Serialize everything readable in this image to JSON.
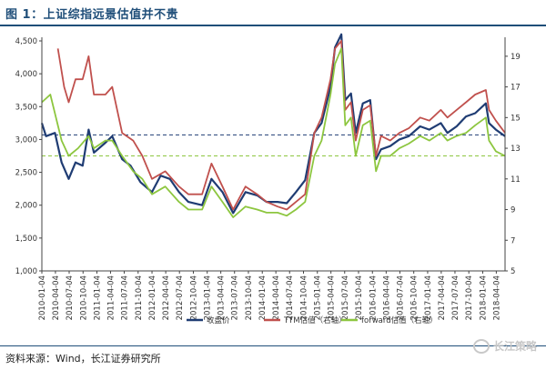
{
  "figure": {
    "title": "图 1：上证综指远景估值并不贵",
    "source": "资料来源：Wind，长江证券研究所",
    "watermark": "长江策略",
    "watermark_icon": "wechat-icon"
  },
  "chart_data": {
    "type": "line",
    "title": "",
    "xlabel": "",
    "ylabel": "",
    "x_start": "2010-01-04",
    "x_end": "2018-06-01",
    "x_ticks": [
      "2010-01-04",
      "2010-04-04",
      "2010-07-04",
      "2010-10-04",
      "2011-01-04",
      "2011-04-04",
      "2011-07-04",
      "2011-10-04",
      "2012-01-04",
      "2012-04-04",
      "2012-07-04",
      "2012-10-04",
      "2013-01-04",
      "2013-04-04",
      "2013-07-04",
      "2013-10-04",
      "2014-01-04",
      "2014-04-04",
      "2014-07-04",
      "2014-10-04",
      "2015-01-04",
      "2015-04-04",
      "2015-07-04",
      "2015-10-04",
      "2016-01-04",
      "2016-04-04",
      "2016-07-04",
      "2016-10-04",
      "2017-01-04",
      "2017-04-04",
      "2017-07-04",
      "2017-10-04",
      "2018-01-04",
      "2018-04-04"
    ],
    "y_left": {
      "ticks": [
        "1,000",
        "1,500",
        "2,000",
        "2,500",
        "3,000",
        "3,500",
        "4,000",
        "4,500"
      ],
      "range": [
        1000,
        4500
      ]
    },
    "y_right": {
      "ticks": [
        "5",
        "7",
        "9",
        "11",
        "13",
        "15",
        "17",
        "19"
      ],
      "range": [
        5,
        20
      ]
    },
    "reference_lines": [
      {
        "axis": "left",
        "value": 3070,
        "color": "#1f3c73",
        "style": "dashed"
      },
      {
        "axis": "right",
        "value": 12.5,
        "color": "#8dc63f",
        "style": "dashed"
      }
    ],
    "legend": {
      "placement": "bottom"
    },
    "series": [
      {
        "name": "收盘价",
        "axis": "left",
        "color": "#1f3c73",
        "points": [
          [
            "2010-01-04",
            3250
          ],
          [
            "2010-02-01",
            3050
          ],
          [
            "2010-04-01",
            3100
          ],
          [
            "2010-05-15",
            2650
          ],
          [
            "2010-07-01",
            2400
          ],
          [
            "2010-08-15",
            2650
          ],
          [
            "2010-10-01",
            2600
          ],
          [
            "2010-11-10",
            3150
          ],
          [
            "2010-12-15",
            2800
          ],
          [
            "2011-03-01",
            2950
          ],
          [
            "2011-04-15",
            3050
          ],
          [
            "2011-06-20",
            2700
          ],
          [
            "2011-08-15",
            2600
          ],
          [
            "2011-10-20",
            2350
          ],
          [
            "2012-01-04",
            2200
          ],
          [
            "2012-03-01",
            2450
          ],
          [
            "2012-05-01",
            2400
          ],
          [
            "2012-07-01",
            2200
          ],
          [
            "2012-09-01",
            2050
          ],
          [
            "2012-12-01",
            2000
          ],
          [
            "2013-02-01",
            2400
          ],
          [
            "2013-04-15",
            2200
          ],
          [
            "2013-06-25",
            1880
          ],
          [
            "2013-09-15",
            2200
          ],
          [
            "2013-12-01",
            2150
          ],
          [
            "2014-02-01",
            2050
          ],
          [
            "2014-04-15",
            2050
          ],
          [
            "2014-06-15",
            2030
          ],
          [
            "2014-08-15",
            2200
          ],
          [
            "2014-10-15",
            2380
          ],
          [
            "2014-12-15",
            3100
          ],
          [
            "2015-02-01",
            3250
          ],
          [
            "2015-04-01",
            3800
          ],
          [
            "2015-05-01",
            4400
          ],
          [
            "2015-06-12",
            4600
          ],
          [
            "2015-07-08",
            3600
          ],
          [
            "2015-08-15",
            3700
          ],
          [
            "2015-09-15",
            3100
          ],
          [
            "2015-11-01",
            3550
          ],
          [
            "2015-12-20",
            3600
          ],
          [
            "2016-01-28",
            2700
          ],
          [
            "2016-03-01",
            2850
          ],
          [
            "2016-05-01",
            2900
          ],
          [
            "2016-07-01",
            3000
          ],
          [
            "2016-09-01",
            3050
          ],
          [
            "2016-11-15",
            3200
          ],
          [
            "2017-01-15",
            3150
          ],
          [
            "2017-04-01",
            3250
          ],
          [
            "2017-05-15",
            3100
          ],
          [
            "2017-07-15",
            3200
          ],
          [
            "2017-09-15",
            3350
          ],
          [
            "2017-11-15",
            3400
          ],
          [
            "2018-01-25",
            3550
          ],
          [
            "2018-02-15",
            3250
          ],
          [
            "2018-04-01",
            3150
          ],
          [
            "2018-06-01",
            3050
          ]
        ]
      },
      {
        "name": "TTM估值（右轴）",
        "axis": "right",
        "color": "#c0504d",
        "points": [
          [
            "2010-04-20",
            19.5
          ],
          [
            "2010-06-01",
            17.0
          ],
          [
            "2010-07-01",
            16.0
          ],
          [
            "2010-08-15",
            17.5
          ],
          [
            "2010-10-01",
            17.5
          ],
          [
            "2010-11-10",
            19.0
          ],
          [
            "2010-12-15",
            16.5
          ],
          [
            "2011-03-01",
            16.5
          ],
          [
            "2011-04-15",
            17.0
          ],
          [
            "2011-06-20",
            14.0
          ],
          [
            "2011-09-01",
            13.5
          ],
          [
            "2011-11-01",
            12.5
          ],
          [
            "2012-01-04",
            11.0
          ],
          [
            "2012-04-01",
            11.5
          ],
          [
            "2012-07-01",
            10.5
          ],
          [
            "2012-09-01",
            10.0
          ],
          [
            "2012-12-01",
            10.0
          ],
          [
            "2013-02-01",
            12.0
          ],
          [
            "2013-04-15",
            10.5
          ],
          [
            "2013-06-25",
            9.0
          ],
          [
            "2013-09-15",
            10.5
          ],
          [
            "2013-12-01",
            10.0
          ],
          [
            "2014-02-01",
            9.5
          ],
          [
            "2014-04-15",
            9.2
          ],
          [
            "2014-06-15",
            9.0
          ],
          [
            "2014-08-15",
            9.5
          ],
          [
            "2014-10-15",
            10.0
          ],
          [
            "2014-12-15",
            14.0
          ],
          [
            "2015-02-01",
            15.0
          ],
          [
            "2015-04-01",
            17.5
          ],
          [
            "2015-05-01",
            19.5
          ],
          [
            "2015-06-12",
            20.0
          ],
          [
            "2015-07-08",
            15.5
          ],
          [
            "2015-08-15",
            16.0
          ],
          [
            "2015-09-15",
            13.5
          ],
          [
            "2015-11-01",
            15.5
          ],
          [
            "2015-12-20",
            15.8
          ],
          [
            "2016-01-28",
            12.5
          ],
          [
            "2016-03-01",
            13.8
          ],
          [
            "2016-05-01",
            13.5
          ],
          [
            "2016-07-01",
            14.0
          ],
          [
            "2016-09-01",
            14.3
          ],
          [
            "2016-11-15",
            15.0
          ],
          [
            "2017-01-15",
            14.8
          ],
          [
            "2017-04-01",
            15.5
          ],
          [
            "2017-05-15",
            15.0
          ],
          [
            "2017-07-15",
            15.5
          ],
          [
            "2017-09-15",
            16.0
          ],
          [
            "2017-11-15",
            16.5
          ],
          [
            "2018-01-25",
            16.8
          ],
          [
            "2018-02-15",
            15.5
          ],
          [
            "2018-04-01",
            14.8
          ],
          [
            "2018-06-01",
            14.0
          ]
        ]
      },
      {
        "name": "forward估值（右轴）",
        "axis": "right",
        "color": "#8dc63f",
        "points": [
          [
            "2010-01-04",
            16.0
          ],
          [
            "2010-03-01",
            16.5
          ],
          [
            "2010-05-15",
            13.5
          ],
          [
            "2010-07-01",
            12.5
          ],
          [
            "2010-09-01",
            13.0
          ],
          [
            "2010-11-10",
            13.8
          ],
          [
            "2010-12-15",
            13.0
          ],
          [
            "2011-03-01",
            13.5
          ],
          [
            "2011-04-15",
            13.5
          ],
          [
            "2011-06-20",
            12.5
          ],
          [
            "2011-09-01",
            11.5
          ],
          [
            "2011-11-01",
            11.0
          ],
          [
            "2012-01-04",
            10.0
          ],
          [
            "2012-04-01",
            10.5
          ],
          [
            "2012-07-01",
            9.5
          ],
          [
            "2012-09-01",
            9.0
          ],
          [
            "2012-12-01",
            9.0
          ],
          [
            "2013-02-01",
            10.5
          ],
          [
            "2013-04-15",
            9.5
          ],
          [
            "2013-06-25",
            8.5
          ],
          [
            "2013-09-15",
            9.2
          ],
          [
            "2013-12-01",
            9.0
          ],
          [
            "2014-02-01",
            8.8
          ],
          [
            "2014-04-15",
            8.8
          ],
          [
            "2014-06-15",
            8.6
          ],
          [
            "2014-08-15",
            9.0
          ],
          [
            "2014-10-15",
            9.5
          ],
          [
            "2014-12-15",
            12.5
          ],
          [
            "2015-02-01",
            13.5
          ],
          [
            "2015-04-01",
            16.5
          ],
          [
            "2015-05-01",
            18.5
          ],
          [
            "2015-06-12",
            19.5
          ],
          [
            "2015-07-08",
            14.5
          ],
          [
            "2015-08-15",
            15.0
          ],
          [
            "2015-09-15",
            12.5
          ],
          [
            "2015-11-01",
            14.5
          ],
          [
            "2015-12-20",
            14.8
          ],
          [
            "2016-01-28",
            11.5
          ],
          [
            "2016-03-01",
            12.5
          ],
          [
            "2016-05-01",
            12.5
          ],
          [
            "2016-07-01",
            13.0
          ],
          [
            "2016-09-01",
            13.3
          ],
          [
            "2016-11-15",
            13.8
          ],
          [
            "2017-01-15",
            13.5
          ],
          [
            "2017-04-01",
            14.0
          ],
          [
            "2017-05-15",
            13.5
          ],
          [
            "2017-07-15",
            13.8
          ],
          [
            "2017-09-15",
            14.0
          ],
          [
            "2017-11-15",
            14.5
          ],
          [
            "2018-01-25",
            15.0
          ],
          [
            "2018-02-15",
            13.5
          ],
          [
            "2018-04-01",
            12.8
          ],
          [
            "2018-06-01",
            12.5
          ]
        ]
      }
    ]
  }
}
